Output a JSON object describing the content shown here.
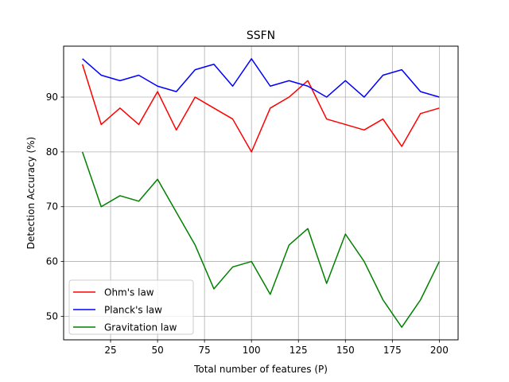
{
  "chart_data": {
    "type": "line",
    "title": "SSFN",
    "xlabel": "Total number of features (P)",
    "ylabel": "Detection Accuracy (%)",
    "xlim": [
      0,
      210
    ],
    "ylim": [
      45.7,
      99.3
    ],
    "xticks": [
      25,
      50,
      75,
      100,
      125,
      150,
      175,
      200
    ],
    "yticks": [
      50,
      60,
      70,
      80,
      90
    ],
    "grid": true,
    "legend_position": "lower-left",
    "x": [
      10,
      20,
      30,
      40,
      50,
      60,
      70,
      80,
      90,
      100,
      110,
      120,
      130,
      140,
      150,
      160,
      170,
      180,
      190,
      200
    ],
    "series": [
      {
        "name": "Ohm's law",
        "color": "#ff0000",
        "values": [
          96,
          85,
          88,
          85,
          91,
          84,
          90,
          88,
          86,
          80,
          88,
          90,
          93,
          86,
          85,
          84,
          86,
          81,
          87,
          88
        ]
      },
      {
        "name": "Planck's law",
        "color": "#0000ff",
        "values": [
          97,
          94,
          93,
          94,
          92,
          91,
          95,
          96,
          92,
          97,
          92,
          93,
          92,
          90,
          93,
          90,
          94,
          95,
          91,
          90
        ]
      },
      {
        "name": "Gravitation law",
        "color": "#008000",
        "values": [
          80,
          70,
          72,
          71,
          75,
          69,
          63,
          55,
          59,
          60,
          54,
          63,
          66,
          56,
          65,
          60,
          53,
          48,
          53,
          60
        ]
      }
    ]
  }
}
